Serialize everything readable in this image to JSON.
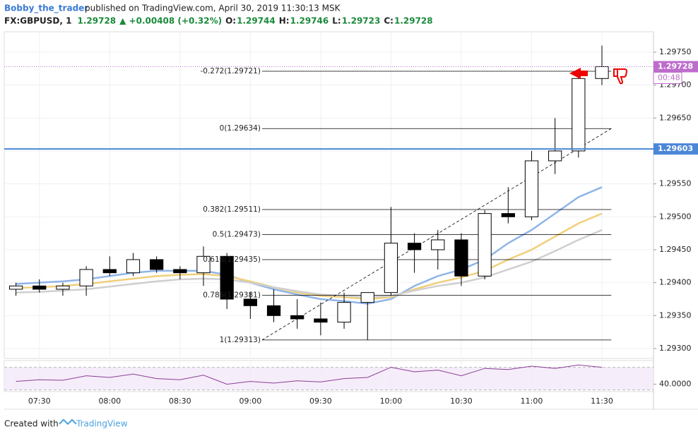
{
  "header": {
    "author": "Bobby_the_trader",
    "published": "published on TradingView.com, April 30, 2019 11:30:13 MSK",
    "symbol": "FX:GBPUSD, 1",
    "last": "1.29728",
    "change": "▲ +0.00408 (+0.32%)",
    "ohlc": [
      {
        "key": "O:",
        "value": "1.29744"
      },
      {
        "key": "H:",
        "value": "1.29746"
      },
      {
        "key": "L:",
        "value": "1.29723"
      },
      {
        "key": "C:",
        "value": "1.29728"
      }
    ]
  },
  "chart_data": {
    "type": "candlestick",
    "x": [
      "07:20",
      "07:30",
      "07:40",
      "07:50",
      "08:00",
      "08:10",
      "08:20",
      "08:30",
      "08:40",
      "08:50",
      "09:00",
      "09:10",
      "09:20",
      "09:30",
      "09:40",
      "09:50",
      "10:00",
      "10:10",
      "10:20",
      "10:30",
      "10:40",
      "10:50",
      "11:00",
      "11:10",
      "11:20",
      "11:30"
    ],
    "open": [
      1.2939,
      1.29395,
      1.2939,
      1.29395,
      1.2942,
      1.29415,
      1.29435,
      1.2942,
      1.29415,
      1.2944,
      1.29375,
      1.29365,
      1.2935,
      1.29345,
      1.2934,
      1.2937,
      1.29385,
      1.2946,
      1.2945,
      1.29465,
      1.2941,
      1.29505,
      1.295,
      1.29585,
      1.296,
      1.2971
    ],
    "high": [
      1.294,
      1.29405,
      1.294,
      1.29425,
      1.2944,
      1.29445,
      1.2944,
      1.29425,
      1.29455,
      1.29445,
      1.29385,
      1.2939,
      1.29375,
      1.2937,
      1.29385,
      1.29385,
      1.29515,
      1.29475,
      1.2948,
      1.29475,
      1.2951,
      1.29545,
      1.296,
      1.2965,
      1.2972,
      1.2976
    ],
    "low": [
      1.2938,
      1.29385,
      1.2938,
      1.2938,
      1.2941,
      1.2941,
      1.29415,
      1.29405,
      1.29395,
      1.2936,
      1.29345,
      1.2934,
      1.2933,
      1.2932,
      1.2933,
      1.29313,
      1.2938,
      1.29415,
      1.2942,
      1.29395,
      1.29405,
      1.2949,
      1.29495,
      1.29565,
      1.2959,
      1.297
    ],
    "close": [
      1.29395,
      1.2939,
      1.29395,
      1.2942,
      1.29415,
      1.29435,
      1.2942,
      1.29415,
      1.2944,
      1.29375,
      1.29365,
      1.2935,
      1.29345,
      1.2934,
      1.2937,
      1.29385,
      1.2946,
      1.2945,
      1.29465,
      1.2941,
      1.29505,
      1.295,
      1.29585,
      1.296,
      1.2971,
      1.29728
    ],
    "up_color": "#ffffff",
    "down_color": "#000000",
    "wick_color": "#000000",
    "series": [
      {
        "color": "#8fb4e8",
        "values": [
          1.29398,
          1.294,
          1.29402,
          1.29405,
          1.2941,
          1.29415,
          1.29418,
          1.29418,
          1.29418,
          1.29412,
          1.294,
          1.2939,
          1.29382,
          1.29375,
          1.29372,
          1.29368,
          1.29375,
          1.29395,
          1.2941,
          1.2942,
          1.29435,
          1.2946,
          1.2948,
          1.29505,
          1.2953,
          1.29545
        ]
      },
      {
        "color": "#f0cf7a",
        "values": [
          1.29392,
          1.29393,
          1.29395,
          1.29398,
          1.29402,
          1.29406,
          1.2941,
          1.29412,
          1.29413,
          1.2941,
          1.29402,
          1.29393,
          1.29385,
          1.2938,
          1.29378,
          1.29375,
          1.29378,
          1.2939,
          1.294,
          1.29408,
          1.29418,
          1.29435,
          1.2945,
          1.2947,
          1.2949,
          1.29505
        ]
      },
      {
        "color": "#cfcfcf",
        "values": [
          1.29385,
          1.29386,
          1.29388,
          1.2939,
          1.29394,
          1.29398,
          1.29402,
          1.29405,
          1.29406,
          1.29405,
          1.294,
          1.29393,
          1.29387,
          1.29382,
          1.2938,
          1.29378,
          1.2938,
          1.29388,
          1.29395,
          1.294,
          1.29408,
          1.2942,
          1.29432,
          1.29448,
          1.29465,
          1.2948
        ]
      }
    ],
    "xlim": [
      "07:15",
      "11:52"
    ],
    "ylim": [
      1.29285,
      1.29781
    ],
    "yticks": [
      {
        "value": 1.293,
        "label": "1.29300"
      },
      {
        "value": 1.2935,
        "label": "1.29350"
      },
      {
        "value": 1.294,
        "label": "1.29400"
      },
      {
        "value": 1.2945,
        "label": "1.29450"
      },
      {
        "value": 1.295,
        "label": "1.29500"
      },
      {
        "value": 1.2955,
        "label": "1.29550"
      },
      {
        "value": 1.296,
        "label": "1.29600"
      },
      {
        "value": 1.2965,
        "label": "1.29650"
      },
      {
        "value": 1.297,
        "label": "1.29700"
      },
      {
        "value": 1.2975,
        "label": "1.29750"
      }
    ],
    "xticks": [
      "07:30",
      "08:00",
      "08:30",
      "09:00",
      "09:30",
      "10:00",
      "10:30",
      "11:00",
      "11:30"
    ],
    "fib_levels": [
      {
        "value": 1.29721,
        "label": "-0.272(1.29721)"
      },
      {
        "value": 1.29634,
        "label": "0(1.29634)"
      },
      {
        "value": 1.29511,
        "label": "0.382(1.29511)"
      },
      {
        "value": 1.29473,
        "label": "0.5(1.29473)"
      },
      {
        "value": 1.29435,
        "label": "0.618(1.29435)"
      },
      {
        "value": 1.29381,
        "label": "0.786(1.29381)"
      },
      {
        "value": 1.29313,
        "label": "1(1.29313)"
      }
    ],
    "fib_x": [
      "09:05",
      "11:34"
    ],
    "trendline": {
      "x": [
        "09:05",
        "11:34"
      ],
      "y": [
        1.29313,
        1.29634
      ]
    },
    "hline": {
      "value": 1.29603,
      "label": "1.29603",
      "color": "#4a87d7"
    },
    "last_price": {
      "value": 1.29728,
      "label": "1.29728",
      "color": "#bd6dcc",
      "countdown": "00:48"
    },
    "rsi": {
      "values": [
        45,
        48,
        47,
        55,
        52,
        58,
        50,
        48,
        56,
        40,
        45,
        42,
        46,
        44,
        50,
        52,
        70,
        62,
        65,
        55,
        68,
        66,
        72,
        68,
        74,
        70
      ],
      "color": "#8a3e97",
      "ylim": [
        27,
        82
      ],
      "band": [
        30,
        70
      ],
      "yticks": [
        {
          "value": 40,
          "label": "40.0000"
        }
      ]
    }
  },
  "footer": {
    "text": "Created with",
    "brand": "TradingView"
  }
}
